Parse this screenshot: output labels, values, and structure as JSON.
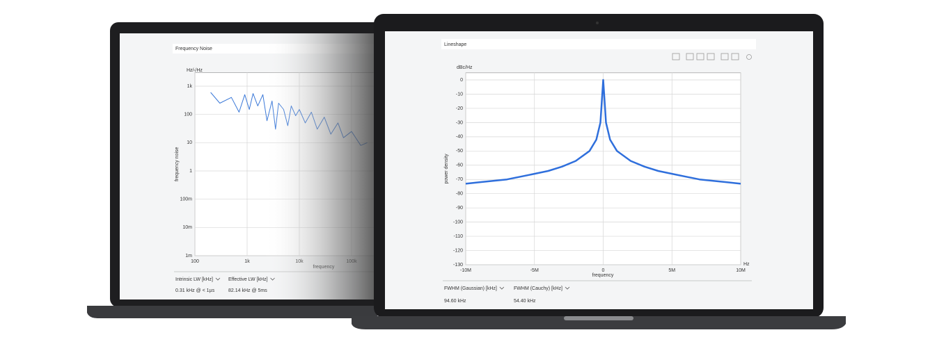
{
  "chart_data": [
    {
      "type": "line",
      "title": "Frequency Noise",
      "y_unit": "Hz/√Hz",
      "ylabel": "frequency noise",
      "xlabel": "frequency",
      "xscale": "log",
      "yscale": "log",
      "grid": true,
      "color": "#3a78d8",
      "xlim": [
        100,
        1000000
      ],
      "ylim": [
        0.001,
        3000
      ],
      "xticks": [
        100,
        {
          "value": 1000,
          "label": "1k"
        },
        {
          "value": 10000,
          "label": "10k"
        },
        {
          "value": 100000,
          "label": "100k"
        }
      ],
      "yticks": [
        {
          "value": 0.001,
          "label": "1m"
        },
        {
          "value": 0.01,
          "label": "10m"
        },
        {
          "value": 0.1,
          "label": "100m"
        },
        1,
        10,
        100,
        {
          "value": 1000,
          "label": "1k"
        }
      ],
      "x": [
        200,
        300,
        500,
        700,
        900,
        1100,
        1300,
        1600,
        2000,
        2400,
        3000,
        3500,
        4000,
        5000,
        6000,
        7000,
        8500,
        10000,
        13000,
        17000,
        22000,
        30000,
        40000,
        55000,
        70000,
        100000,
        150000,
        200000
      ],
      "values": [
        600,
        250,
        400,
        120,
        500,
        150,
        550,
        200,
        500,
        60,
        300,
        30,
        250,
        150,
        40,
        200,
        90,
        150,
        50,
        120,
        30,
        80,
        20,
        50,
        15,
        25,
        8,
        10
      ],
      "readouts": [
        {
          "header": "Intrinsic LW [kHz]",
          "value": "0.31 kHz @ < 1µs"
        },
        {
          "header": "Effective LW [kHz]",
          "value": "82.14 kHz @ 5ms"
        }
      ]
    },
    {
      "type": "line",
      "title": "Lineshape",
      "y_unit": "dBc/Hz",
      "x_unit": "Hz",
      "ylabel": "power density",
      "xlabel": "frequency",
      "xscale": "linear",
      "yscale": "linear",
      "grid": true,
      "color": "#2f6fdc",
      "xlim": [
        -10000000,
        10000000
      ],
      "ylim": [
        -130,
        5
      ],
      "xticks": [
        {
          "value": -10000000,
          "label": "-10M"
        },
        {
          "value": -5000000,
          "label": "-5M"
        },
        0,
        {
          "value": 5000000,
          "label": "5M"
        },
        {
          "value": 10000000,
          "label": "10M"
        }
      ],
      "yticks": [
        0,
        -10,
        -20,
        -30,
        -40,
        -50,
        -60,
        -70,
        -80,
        -90,
        -100,
        -110,
        -120,
        -130
      ],
      "x": [
        -10000000,
        -9000000,
        -8000000,
        -7000000,
        -6000000,
        -5000000,
        -4000000,
        -3000000,
        -2000000,
        -1000000,
        -500000,
        -200000,
        0,
        200000,
        500000,
        1000000,
        2000000,
        3000000,
        4000000,
        5000000,
        6000000,
        7000000,
        8000000,
        9000000,
        10000000
      ],
      "values": [
        -73,
        -72,
        -71,
        -70,
        -68,
        -66,
        -64,
        -61,
        -57,
        -50,
        -42,
        -30,
        0,
        -30,
        -42,
        -50,
        -57,
        -61,
        -64,
        -66,
        -68,
        -70,
        -71,
        -72,
        -73
      ],
      "readouts": [
        {
          "header": "FWHM (Gaussian) [kHz]",
          "value": "94.60 kHz"
        },
        {
          "header": "FWHM (Cauchy) [kHz]",
          "value": "54.40 kHz"
        }
      ]
    }
  ]
}
